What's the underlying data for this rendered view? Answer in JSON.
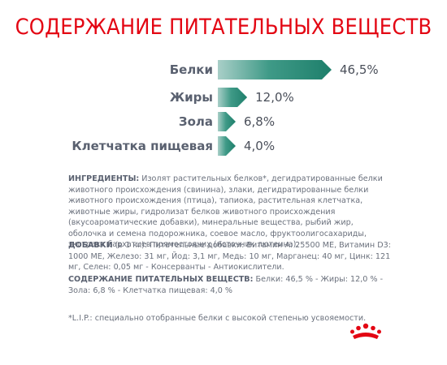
{
  "title": "СОДЕРЖАНИЕ ПИТАТЕЛЬНЫХ ВЕЩЕСТВ",
  "chart_data": {
    "type": "bar",
    "orientation": "horizontal",
    "categories": [
      "Белки",
      "Жиры",
      "Зола",
      "Клетчатка пищевая"
    ],
    "values": [
      46.5,
      12.0,
      6.8,
      4.0
    ],
    "value_labels": [
      "46,5%",
      "12,0%",
      "6,8%",
      "4,0%"
    ],
    "title": "СОДЕРЖАНИЕ ПИТАТЕЛЬНЫХ ВЕЩЕСТВ",
    "xlabel": "",
    "ylabel": "",
    "grid": false,
    "colors": {
      "bar_start": "#a9cfc8",
      "bar_end": "#1e7f6b",
      "title": "#e30613"
    }
  },
  "ingredients": {
    "label": "ИНГРЕДИЕНТЫ:",
    "text": " Изолят растительных белков*, дегидратированные белки животного происхождения (свинина), злаки, дегидратированные белки животного происхождения (птица), тапиока, растительная клетчатка, животные жиры, гидролизат белков животного происхождения (вкусоароматические добавки), минеральные вещества, рыбий жир, оболочка и семена подорожника, соевое масло, фруктоолигосахариды, экстракт бархатцев прямостоячих (источник лютеина)."
  },
  "additives": {
    "label": "ДОБАВКИ",
    "unit": " (в 1 кг):",
    "text": " Питательные добавки: Витамин A: 25500 МЕ, Витамин D3: 1000 МЕ, Железо: 31 мг, Йод: 3,1 мг, Медь: 10 мг, Марганец: 40 мг, Цинк: 121 мг, Селен: 0,05 мг - Консерванты - Антиокислители."
  },
  "nutrients": {
    "label": "СОДЕРЖАНИЕ ПИТАТЕЛЬНЫХ ВЕЩЕСТВ:",
    "text": " Белки: 46,5 % - Жиры: 12,0 % - Зола: 6,8 % - Клетчатка пищевая: 4,0 %"
  },
  "footnote": "*L.I.P.: специально отобранные белки с высокой степенью усвояемости.",
  "logo": {
    "icon": "royal-canin-crown-icon",
    "color": "#e30613"
  }
}
